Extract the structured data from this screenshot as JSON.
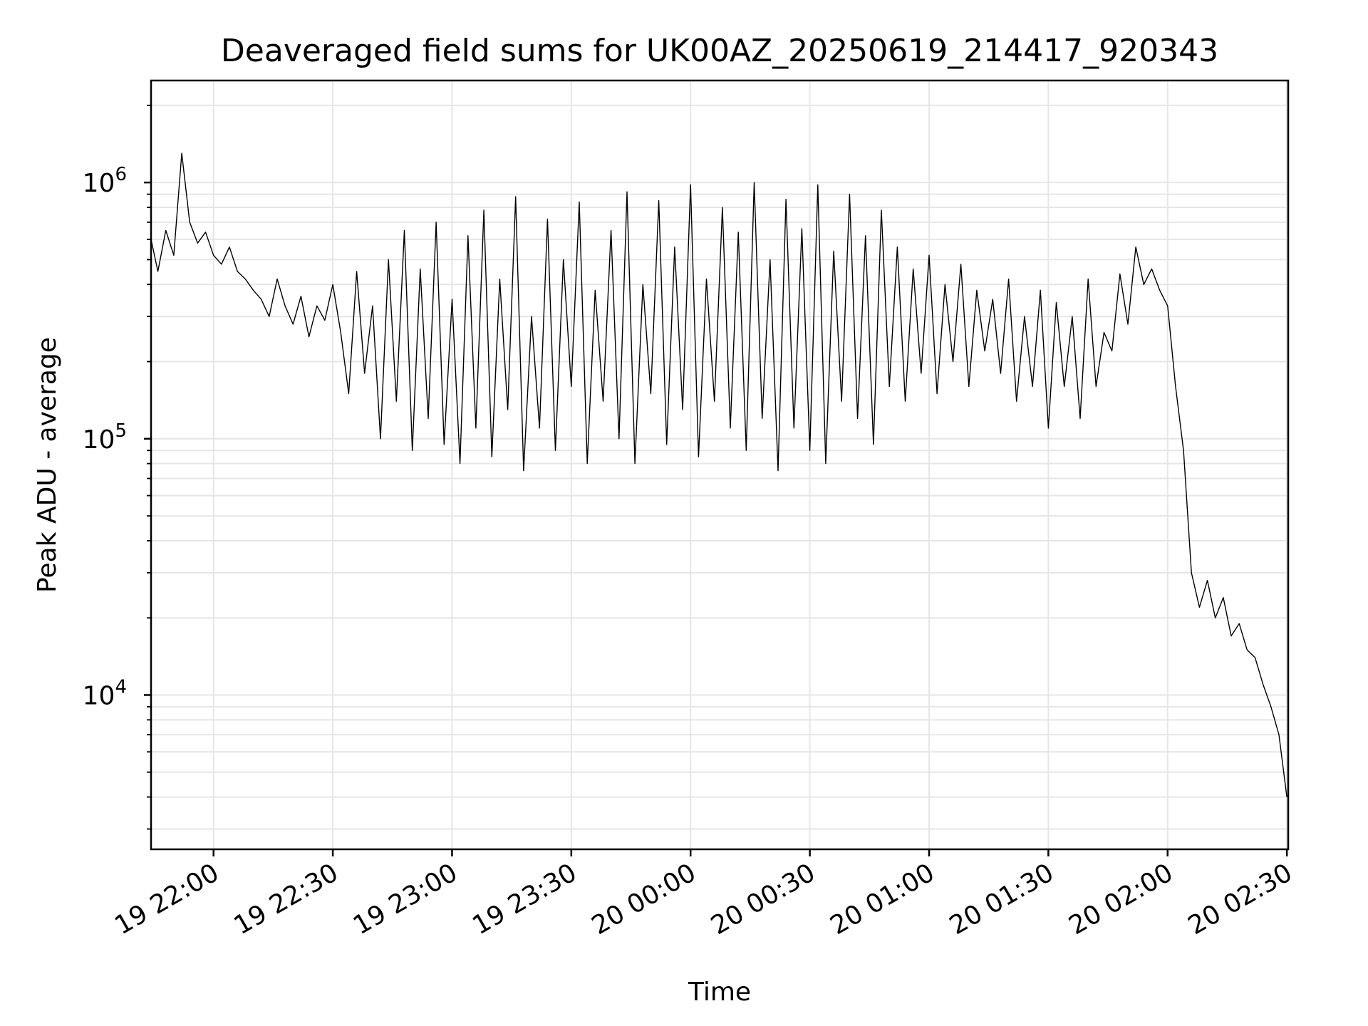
{
  "chart_data": {
    "type": "line",
    "title": "Deaveraged field sums for UK00AZ_20250619_214417_920343",
    "xlabel": "Time",
    "ylabel": "Peak ADU - average",
    "yscale": "log",
    "grid": true,
    "xlim": [
      "2025-06-19 21:44:17",
      "2025-06-20 02:30:20"
    ],
    "ylim": [
      2500,
      2500000
    ],
    "x_ticks": [
      {
        "value": "2025-06-19 22:00",
        "label": "19 22:00"
      },
      {
        "value": "2025-06-19 22:30",
        "label": "19 22:30"
      },
      {
        "value": "2025-06-19 23:00",
        "label": "19 23:00"
      },
      {
        "value": "2025-06-19 23:30",
        "label": "19 23:30"
      },
      {
        "value": "2025-06-20 00:00",
        "label": "20 00:00"
      },
      {
        "value": "2025-06-20 00:30",
        "label": "20 00:30"
      },
      {
        "value": "2025-06-20 01:00",
        "label": "20 01:00"
      },
      {
        "value": "2025-06-20 01:30",
        "label": "20 01:30"
      },
      {
        "value": "2025-06-20 02:00",
        "label": "20 02:00"
      },
      {
        "value": "2025-06-20 02:30",
        "label": "20 02:30"
      }
    ],
    "y_ticks": [
      {
        "value": 10000,
        "base": "10",
        "exp": "4"
      },
      {
        "value": 100000,
        "base": "10",
        "exp": "5"
      },
      {
        "value": 1000000,
        "base": "10",
        "exp": "6"
      }
    ],
    "series": [
      {
        "color": "#000000",
        "x": [
          "2025-06-19 21:44",
          "2025-06-19 21:46",
          "2025-06-19 21:48",
          "2025-06-19 21:50",
          "2025-06-19 21:52",
          "2025-06-19 21:54",
          "2025-06-19 21:56",
          "2025-06-19 21:58",
          "2025-06-19 22:00",
          "2025-06-19 22:02",
          "2025-06-19 22:04",
          "2025-06-19 22:06",
          "2025-06-19 22:08",
          "2025-06-19 22:10",
          "2025-06-19 22:12",
          "2025-06-19 22:14",
          "2025-06-19 22:16",
          "2025-06-19 22:18",
          "2025-06-19 22:20",
          "2025-06-19 22:22",
          "2025-06-19 22:24",
          "2025-06-19 22:26",
          "2025-06-19 22:28",
          "2025-06-19 22:30",
          "2025-06-19 22:32",
          "2025-06-19 22:34",
          "2025-06-19 22:36",
          "2025-06-19 22:38",
          "2025-06-19 22:40",
          "2025-06-19 22:42",
          "2025-06-19 22:44",
          "2025-06-19 22:46",
          "2025-06-19 22:48",
          "2025-06-19 22:50",
          "2025-06-19 22:52",
          "2025-06-19 22:54",
          "2025-06-19 22:56",
          "2025-06-19 22:58",
          "2025-06-19 23:00",
          "2025-06-19 23:02",
          "2025-06-19 23:04",
          "2025-06-19 23:06",
          "2025-06-19 23:08",
          "2025-06-19 23:10",
          "2025-06-19 23:12",
          "2025-06-19 23:14",
          "2025-06-19 23:16",
          "2025-06-19 23:18",
          "2025-06-19 23:20",
          "2025-06-19 23:22",
          "2025-06-19 23:24",
          "2025-06-19 23:26",
          "2025-06-19 23:28",
          "2025-06-19 23:30",
          "2025-06-19 23:32",
          "2025-06-19 23:34",
          "2025-06-19 23:36",
          "2025-06-19 23:38",
          "2025-06-19 23:40",
          "2025-06-19 23:42",
          "2025-06-19 23:44",
          "2025-06-19 23:46",
          "2025-06-19 23:48",
          "2025-06-19 23:50",
          "2025-06-19 23:52",
          "2025-06-19 23:54",
          "2025-06-19 23:56",
          "2025-06-19 23:58",
          "2025-06-20 00:00",
          "2025-06-20 00:02",
          "2025-06-20 00:04",
          "2025-06-20 00:06",
          "2025-06-20 00:08",
          "2025-06-20 00:10",
          "2025-06-20 00:12",
          "2025-06-20 00:14",
          "2025-06-20 00:16",
          "2025-06-20 00:18",
          "2025-06-20 00:20",
          "2025-06-20 00:22",
          "2025-06-20 00:24",
          "2025-06-20 00:26",
          "2025-06-20 00:28",
          "2025-06-20 00:30",
          "2025-06-20 00:32",
          "2025-06-20 00:34",
          "2025-06-20 00:36",
          "2025-06-20 00:38",
          "2025-06-20 00:40",
          "2025-06-20 00:42",
          "2025-06-20 00:44",
          "2025-06-20 00:46",
          "2025-06-20 00:48",
          "2025-06-20 00:50",
          "2025-06-20 00:52",
          "2025-06-20 00:54",
          "2025-06-20 00:56",
          "2025-06-20 00:58",
          "2025-06-20 01:00",
          "2025-06-20 01:02",
          "2025-06-20 01:04",
          "2025-06-20 01:06",
          "2025-06-20 01:08",
          "2025-06-20 01:10",
          "2025-06-20 01:12",
          "2025-06-20 01:14",
          "2025-06-20 01:16",
          "2025-06-20 01:18",
          "2025-06-20 01:20",
          "2025-06-20 01:22",
          "2025-06-20 01:24",
          "2025-06-20 01:26",
          "2025-06-20 01:28",
          "2025-06-20 01:30",
          "2025-06-20 01:32",
          "2025-06-20 01:34",
          "2025-06-20 01:36",
          "2025-06-20 01:38",
          "2025-06-20 01:40",
          "2025-06-20 01:42",
          "2025-06-20 01:44",
          "2025-06-20 01:46",
          "2025-06-20 01:48",
          "2025-06-20 01:50",
          "2025-06-20 01:52",
          "2025-06-20 01:54",
          "2025-06-20 01:56",
          "2025-06-20 01:58",
          "2025-06-20 02:00",
          "2025-06-20 02:02",
          "2025-06-20 02:04",
          "2025-06-20 02:06",
          "2025-06-20 02:08",
          "2025-06-20 02:10",
          "2025-06-20 02:12",
          "2025-06-20 02:14",
          "2025-06-20 02:16",
          "2025-06-20 02:18",
          "2025-06-20 02:20",
          "2025-06-20 02:22",
          "2025-06-20 02:24",
          "2025-06-20 02:26",
          "2025-06-20 02:28",
          "2025-06-20 02:30"
        ],
        "y": [
          600000,
          450000,
          650000,
          520000,
          1300000,
          700000,
          580000,
          640000,
          520000,
          480000,
          560000,
          450000,
          420000,
          380000,
          350000,
          300000,
          420000,
          330000,
          280000,
          360000,
          250000,
          330000,
          290000,
          400000,
          260000,
          150000,
          450000,
          180000,
          330000,
          100000,
          500000,
          140000,
          650000,
          90000,
          460000,
          120000,
          700000,
          95000,
          350000,
          80000,
          620000,
          110000,
          780000,
          85000,
          420000,
          130000,
          880000,
          75000,
          300000,
          110000,
          720000,
          90000,
          500000,
          160000,
          840000,
          80000,
          380000,
          140000,
          650000,
          100000,
          920000,
          80000,
          400000,
          150000,
          850000,
          95000,
          560000,
          130000,
          980000,
          85000,
          420000,
          140000,
          800000,
          110000,
          640000,
          90000,
          1000000,
          120000,
          500000,
          75000,
          860000,
          110000,
          660000,
          90000,
          980000,
          80000,
          540000,
          140000,
          900000,
          120000,
          620000,
          95000,
          780000,
          160000,
          560000,
          140000,
          460000,
          180000,
          520000,
          150000,
          400000,
          200000,
          480000,
          160000,
          380000,
          220000,
          350000,
          180000,
          420000,
          140000,
          300000,
          160000,
          380000,
          110000,
          340000,
          160000,
          300000,
          120000,
          420000,
          160000,
          260000,
          220000,
          440000,
          280000,
          560000,
          400000,
          460000,
          380000,
          330000,
          160000,
          90000,
          30000,
          22000,
          28000,
          20000,
          24000,
          17000,
          19000,
          15000,
          14000,
          11000,
          9000,
          7000,
          4000
        ]
      }
    ]
  }
}
